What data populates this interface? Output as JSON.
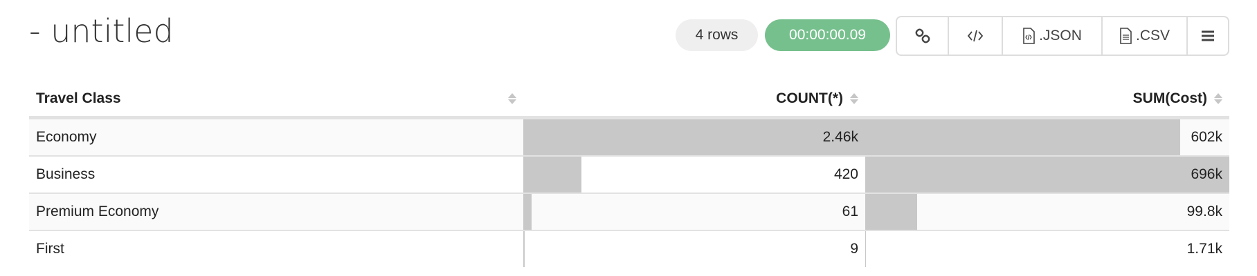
{
  "title": "- untitled",
  "row_count": "4 rows",
  "elapsed": "00:00:00.09",
  "colors": {
    "elapsed_bg": "#76c08d",
    "bar": "#c8c8c8"
  },
  "toolbar": {
    "link_icon": "link-icon",
    "embed_icon": "code-icon",
    "json_label": ".JSON",
    "csv_label": ".CSV",
    "menu_icon": "hamburger-menu-icon"
  },
  "table": {
    "headers": [
      "Travel Class",
      "COUNT(*)",
      "SUM(Cost)"
    ],
    "rows": [
      {
        "class": "Economy",
        "count": "2.46k",
        "sum": "602k",
        "count_value": 2460,
        "sum_value": 602000
      },
      {
        "class": "Business",
        "count": "420",
        "sum": "696k",
        "count_value": 420,
        "sum_value": 696000
      },
      {
        "class": "Premium Economy",
        "count": "61",
        "sum": "99.8k",
        "count_value": 61,
        "sum_value": 99800
      },
      {
        "class": "First",
        "count": "9",
        "sum": "1.71k",
        "count_value": 9,
        "sum_value": 1710
      }
    ]
  }
}
